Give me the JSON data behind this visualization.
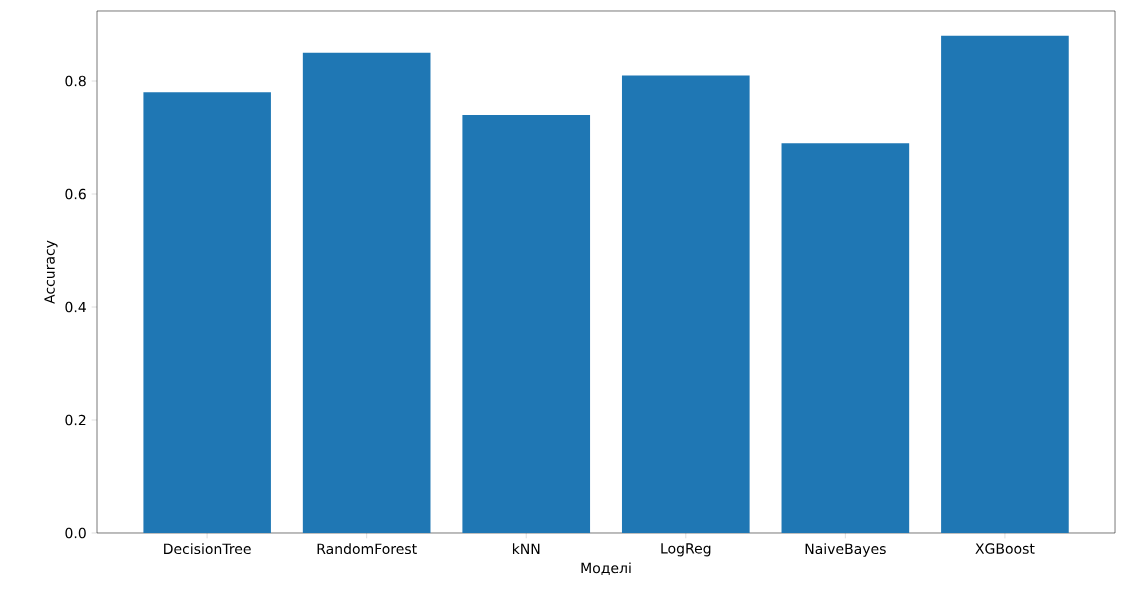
{
  "chart_data": {
    "type": "bar",
    "xlabel": "Моделі",
    "ylabel": "Accuracy",
    "categories": [
      "DecisionTree",
      "RandomForest",
      "kNN",
      "LogReg",
      "NaiveBayes",
      "XGBoost"
    ],
    "values": [
      0.78,
      0.85,
      0.74,
      0.81,
      0.69,
      0.88
    ],
    "color": "#1f77b4",
    "ylim": [
      0,
      0.924
    ],
    "yticks": [
      {
        "value": 0,
        "label": "0.0"
      },
      0.2,
      0.4,
      0.6,
      0.8
    ],
    "grid": false
  }
}
